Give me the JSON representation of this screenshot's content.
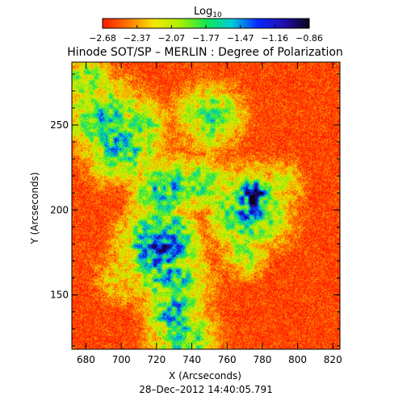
{
  "chart_data": {
    "type": "heatmap",
    "title": "Hinode SOT/SP – MERLIN : Degree of Polarization",
    "colorbar": {
      "label_main": "Log",
      "label_sub": "10",
      "ticks": [
        "−2.68",
        "−2.37",
        "−2.07",
        "−1.77",
        "−1.47",
        "−1.16",
        "−0.86"
      ],
      "range": [
        -2.68,
        -0.86
      ],
      "colormap": [
        "#ff1a00",
        "#ff7800",
        "#f5e600",
        "#a8f000",
        "#14e650",
        "#00ccd8",
        "#0a28ff",
        "#2010b0",
        "#0a0418"
      ]
    },
    "xlabel": "X (Arcseconds)",
    "ylabel": "Y (Arcseconds)",
    "xlim": [
      672,
      824
    ],
    "ylim": [
      118,
      287
    ],
    "xticks": [
      680,
      700,
      720,
      740,
      760,
      780,
      800,
      820
    ],
    "yticks": [
      150,
      200,
      250
    ],
    "xtick_labels": [
      "680",
      "700",
      "720",
      "740",
      "760",
      "780",
      "800",
      "820"
    ],
    "ytick_labels": [
      "150",
      "200",
      "250"
    ],
    "field_sources": [
      {
        "x": 690,
        "y": 255,
        "level": 0.5,
        "radius": 14
      },
      {
        "x": 700,
        "y": 238,
        "level": 0.55,
        "radius": 13
      },
      {
        "x": 710,
        "y": 250,
        "level": 0.45,
        "radius": 10
      },
      {
        "x": 725,
        "y": 212,
        "level": 0.55,
        "radius": 12
      },
      {
        "x": 722,
        "y": 180,
        "level": 0.75,
        "radius": 13
      },
      {
        "x": 728,
        "y": 162,
        "level": 0.55,
        "radius": 13
      },
      {
        "x": 730,
        "y": 140,
        "level": 0.6,
        "radius": 10
      },
      {
        "x": 735,
        "y": 125,
        "level": 0.5,
        "radius": 12
      },
      {
        "x": 745,
        "y": 215,
        "level": 0.45,
        "radius": 10
      },
      {
        "x": 750,
        "y": 255,
        "level": 0.45,
        "radius": 12
      },
      {
        "x": 775,
        "y": 208,
        "level": 0.85,
        "radius": 7
      },
      {
        "x": 772,
        "y": 200,
        "level": 0.6,
        "radius": 14
      },
      {
        "x": 680,
        "y": 275,
        "level": 0.45,
        "radius": 9
      },
      {
        "x": 770,
        "y": 175,
        "level": 0.35,
        "radius": 9
      },
      {
        "x": 790,
        "y": 215,
        "level": 0.3,
        "radius": 9
      },
      {
        "x": 700,
        "y": 160,
        "level": 0.25,
        "radius": 10
      }
    ],
    "background_level": 0.05
  },
  "footer": {
    "timestamp": "28–Dec–2012 14:40:05.791"
  }
}
